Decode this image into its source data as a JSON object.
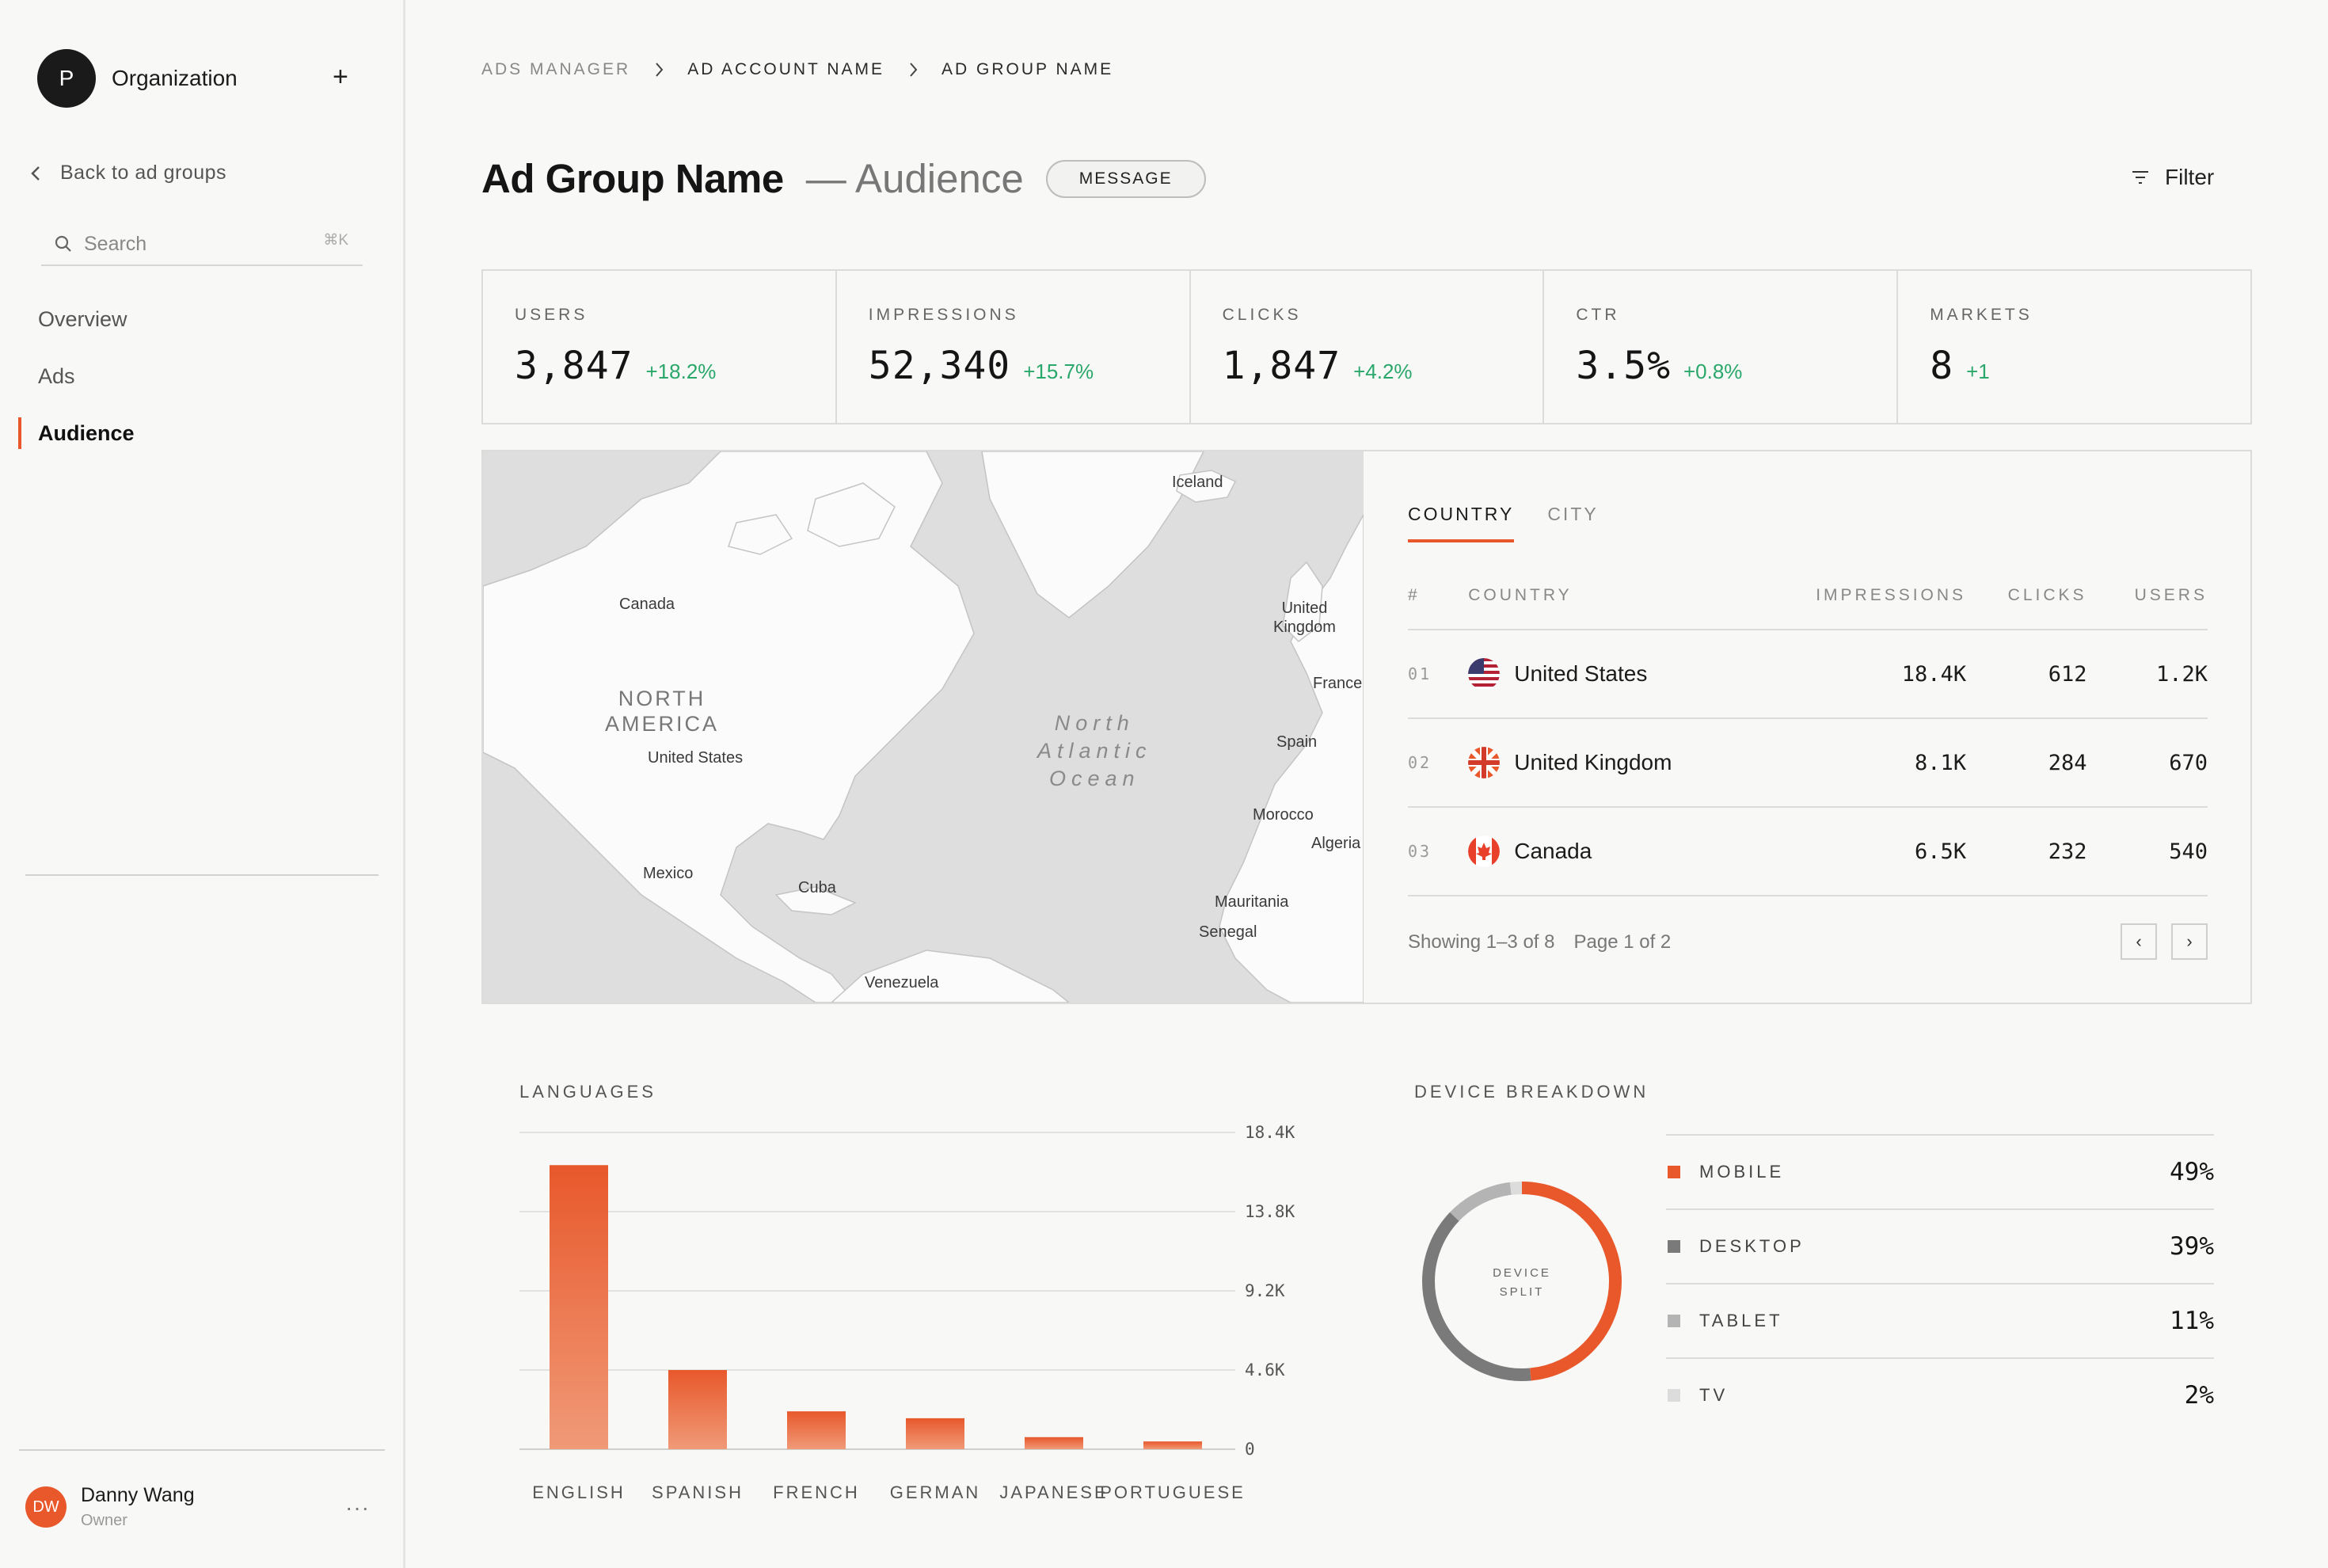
{
  "sidebar": {
    "org_initial": "P",
    "org_name": "Organization",
    "add_glyph": "+",
    "back_label": "Back to ad groups",
    "search_placeholder": "Search",
    "search_shortcut": "⌘K",
    "nav": [
      {
        "label": "Overview",
        "active": false
      },
      {
        "label": "Ads",
        "active": false
      },
      {
        "label": "Audience",
        "active": true
      }
    ],
    "user": {
      "initials": "DW",
      "name": "Danny Wang",
      "role": "Owner",
      "more": "···"
    }
  },
  "breadcrumb": [
    "ADS MANAGER",
    "AD ACCOUNT NAME",
    "AD GROUP NAME"
  ],
  "header": {
    "title": "Ad Group Name",
    "subtitle": "— Audience",
    "message_button": "MESSAGE",
    "filter_label": "Filter"
  },
  "stats": [
    {
      "label": "USERS",
      "value": "3,847",
      "delta": "+18.2%"
    },
    {
      "label": "IMPRESSIONS",
      "value": "52,340",
      "delta": "+15.7%"
    },
    {
      "label": "CLICKS",
      "value": "1,847",
      "delta": "+4.2%"
    },
    {
      "label": "CTR",
      "value": "3.5%",
      "delta": "+0.8%"
    },
    {
      "label": "MARKETS",
      "value": "8",
      "delta": "+1"
    }
  ],
  "map": {
    "labels": {
      "iceland": "Iceland",
      "canada": "Canada",
      "north_america": "NORTH\nAMERICA",
      "united_states": "United States",
      "mexico": "Mexico",
      "cuba": "Cuba",
      "venezuela": "Venezuela",
      "ocean": "North\nAtlantic\nOcean",
      "uk": "United\nKingdom",
      "france": "France",
      "spain": "Spain",
      "morocco": "Morocco",
      "algeria": "Algeria",
      "mauritania": "Mauritania",
      "senegal": "Senegal"
    }
  },
  "geo_tabs": [
    {
      "label": "COUNTRY",
      "active": true
    },
    {
      "label": "CITY",
      "active": false
    }
  ],
  "geo_table": {
    "columns": [
      "#",
      "COUNTRY",
      "IMPRESSIONS",
      "CLICKS",
      "USERS"
    ],
    "rows": [
      {
        "idx": "01",
        "country": "United States",
        "flag": "us-flag-icon",
        "impressions": "18.4K",
        "clicks": "612",
        "users": "1.2K"
      },
      {
        "idx": "02",
        "country": "United Kingdom",
        "flag": "uk-flag-icon",
        "impressions": "8.1K",
        "clicks": "284",
        "users": "670"
      },
      {
        "idx": "03",
        "country": "Canada",
        "flag": "canada-flag-icon",
        "impressions": "6.5K",
        "clicks": "232",
        "users": "540"
      }
    ],
    "showing": "Showing 1–3 of 8",
    "page": "Page 1 of 2",
    "prev": "‹",
    "next": "›"
  },
  "languages": {
    "title": "LANGUAGES",
    "chart_data": {
      "type": "bar",
      "categories": [
        "ENGLISH",
        "SPANISH",
        "FRENCH",
        "GERMAN",
        "JAPANESE",
        "PORTUGUESE"
      ],
      "values": [
        16500,
        4600,
        2200,
        1800,
        700,
        450
      ],
      "y_ticks": [
        "0",
        "4.6K",
        "9.2K",
        "13.8K",
        "18.4K"
      ],
      "ylim": [
        0,
        18400
      ],
      "grid": true,
      "color": "#e8582b"
    }
  },
  "devices": {
    "title": "DEVICE BREAKDOWN",
    "center_label": [
      "DEVICE",
      "SPLIT"
    ],
    "chart_data": {
      "type": "pie",
      "categories": [
        "MOBILE",
        "DESKTOP",
        "TABLET",
        "TV"
      ],
      "values": [
        49,
        39,
        11,
        2
      ],
      "labels": [
        "49%",
        "39%",
        "11%",
        "2%"
      ],
      "colors": [
        "#e8582b",
        "#7a7a7a",
        "#b4b4b4",
        "#dcdcdc"
      ]
    }
  }
}
